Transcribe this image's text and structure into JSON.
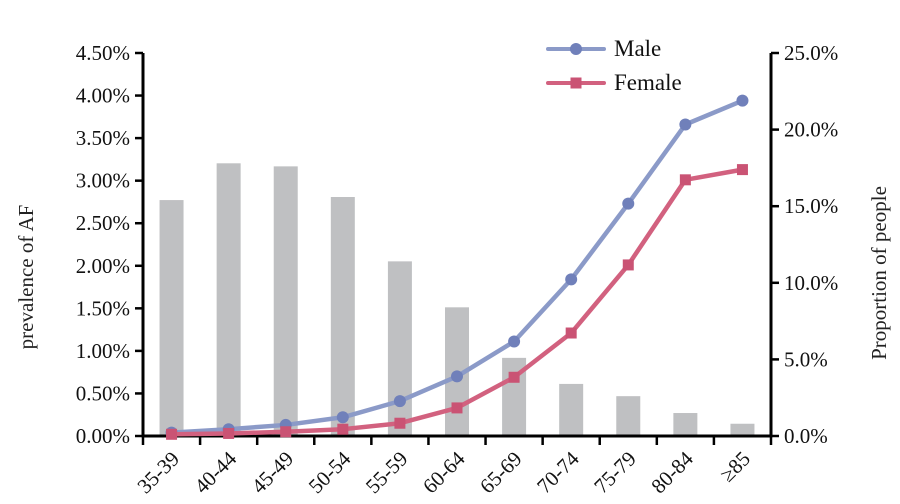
{
  "chart_data": {
    "type": "combo-bar-line",
    "title": "",
    "categories": [
      "35-39",
      "40-44",
      "45-49",
      "50-54",
      "55-59",
      "60-64",
      "65-69",
      "70-74",
      "75-79",
      "80-84",
      "≥85"
    ],
    "bars": {
      "name": "Proportion of people",
      "axis": "right",
      "unit": "%",
      "values": [
        15.4,
        17.8,
        17.6,
        15.6,
        11.4,
        8.4,
        5.1,
        3.4,
        2.6,
        1.5,
        0.8
      ],
      "color": "#bfc0c2"
    },
    "series": [
      {
        "name": "Male",
        "axis": "left",
        "unit": "%",
        "marker": "circle",
        "line_color": "#8b9ac8",
        "marker_color": "#7080ba",
        "values": [
          0.04,
          0.08,
          0.13,
          0.22,
          0.41,
          0.7,
          1.11,
          1.84,
          2.73,
          3.66,
          3.94
        ]
      },
      {
        "name": "Female",
        "axis": "left",
        "unit": "%",
        "marker": "square",
        "line_color": "#d2617f",
        "marker_color": "#ca5374",
        "values": [
          0.02,
          0.03,
          0.05,
          0.08,
          0.15,
          0.33,
          0.69,
          1.21,
          2.01,
          3.01,
          3.13
        ]
      }
    ],
    "left_axis": {
      "title": "prevalence of AF",
      "min": 0,
      "max": 4.5,
      "step": 0.5,
      "ticks": [
        "4.50%",
        "4.00%",
        "3.50%",
        "3.00%",
        "2.50%",
        "2.00%",
        "1.50%",
        "1.00%",
        "0.50%",
        "0.00%"
      ]
    },
    "right_axis": {
      "title": "Proportion of people",
      "min": 0,
      "max": 25,
      "step": 5,
      "ticks": [
        "25.0%",
        "20.0%",
        "15.0%",
        "10.0%",
        "5.0%",
        "0.0%"
      ]
    },
    "x_axis": {
      "label_rotation_deg": -45
    },
    "legend": {
      "position": "top-right-inside",
      "entries": [
        "Male",
        "Female"
      ]
    },
    "grid": false,
    "axis_color": "#000000",
    "text_color": "#111111"
  }
}
